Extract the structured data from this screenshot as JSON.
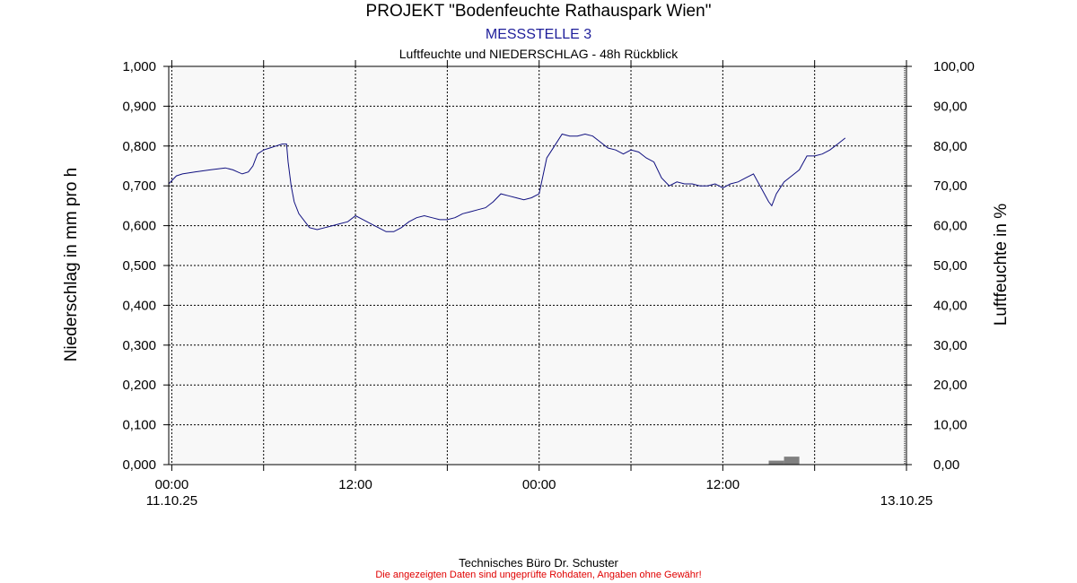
{
  "header": {
    "title": "PROJEKT \"Bodenfeuchte Rathauspark Wien\"",
    "subtitle": "MESSSTELLE 3",
    "subtitle2": "Luftfeuchte und NIEDERSCHLAG - 48h Rückblick"
  },
  "footer": {
    "company": "Technisches Büro Dr. Schuster",
    "disclaimer": "Die angezeigten Daten sind ungeprüfte Rohdaten, Angaben ohne Gewähr!"
  },
  "colors": {
    "subtitle": "#1e1e9a",
    "line": "#101080",
    "bar": "#808080",
    "disclaimer": "#e00000",
    "plot_bg": "#f8f8f8"
  },
  "chart_data": {
    "type": "line",
    "title": "PROJEKT \"Bodenfeuchte Rathauspark Wien\"",
    "subtitle": "MESSSTELLE 3",
    "ylabel": "Niederschlag in mm pro h",
    "y2label": "Luftfeuchte in %",
    "x_range_hours": [
      -0.2,
      48
    ],
    "x_ticks": [
      {
        "h": 0,
        "label": "00:00",
        "sublabel": "11.10.25"
      },
      {
        "h": 6,
        "label": ""
      },
      {
        "h": 12,
        "label": "12:00"
      },
      {
        "h": 18,
        "label": ""
      },
      {
        "h": 24,
        "label": "00:00"
      },
      {
        "h": 30,
        "label": ""
      },
      {
        "h": 36,
        "label": "12:00"
      },
      {
        "h": 42,
        "label": ""
      },
      {
        "h": 48,
        "label": "",
        "sublabel": "13.10.25"
      }
    ],
    "ylim": [
      0,
      1
    ],
    "y_ticks": [
      "0,000",
      "0,100",
      "0,200",
      "0,300",
      "0,400",
      "0,500",
      "0,600",
      "0,700",
      "0,800",
      "0,900",
      "1,000"
    ],
    "y2lim": [
      0,
      100
    ],
    "y2_ticks": [
      "0,00",
      "10,00",
      "20,00",
      "30,00",
      "40,00",
      "50,00",
      "60,00",
      "70,00",
      "80,00",
      "90,00",
      "100,00"
    ],
    "grid": true,
    "series": [
      {
        "name": "Luftfeuchte",
        "axis": "right",
        "x_hours": [
          -0.2,
          0.3,
          0.7,
          1.5,
          2.5,
          3.5,
          4,
          4.3,
          4.6,
          5,
          5.3,
          5.6,
          6,
          6.4,
          6.8,
          7.2,
          7.5,
          7.6,
          7.8,
          8,
          8.3,
          8.7,
          9,
          9.5,
          10,
          10.5,
          11,
          11.5,
          12,
          12.5,
          13,
          13.5,
          14,
          14.5,
          15,
          15.5,
          16,
          16.5,
          17,
          17.5,
          18,
          18.5,
          19,
          19.5,
          20,
          20.5,
          21,
          21.5,
          22,
          22.5,
          23,
          23.5,
          24,
          24.5,
          25,
          25.5,
          26,
          26.5,
          27,
          27.5,
          28,
          28.5,
          29,
          29.5,
          30,
          30.5,
          31,
          31.5,
          32,
          32.5,
          33,
          33.5,
          34,
          34.5,
          35,
          35.5,
          36,
          36.5,
          37,
          37.5,
          38,
          38.5,
          39,
          39.2,
          39.5,
          40,
          40.5,
          41,
          41.5,
          42,
          42.5,
          43,
          43.5,
          44
        ],
        "values": [
          70.5,
          72.5,
          73,
          73.5,
          74,
          74.5,
          74,
          73.5,
          73,
          73.5,
          75,
          78,
          79,
          79.5,
          80,
          80.5,
          80.5,
          76,
          70,
          66,
          63,
          61,
          59.5,
          59,
          59.5,
          60,
          60.5,
          61,
          62.5,
          61.5,
          60.5,
          59.5,
          58.5,
          58.5,
          59.5,
          61,
          62,
          62.5,
          62,
          61.5,
          61.5,
          62,
          63,
          63.5,
          64,
          64.5,
          66,
          68,
          67.5,
          67,
          66.5,
          67,
          68,
          77,
          80,
          83,
          82.5,
          82.5,
          83,
          82.5,
          81,
          79.5,
          79,
          78,
          79,
          78.5,
          77,
          76,
          72,
          70,
          71,
          70.5,
          70.5,
          70,
          70,
          70.5,
          69.5,
          70.5,
          71,
          72,
          73,
          69.5,
          66,
          65,
          68,
          71,
          72.5,
          74,
          77.5,
          77.5,
          78,
          79,
          80.5,
          82
        ]
      },
      {
        "name": "Niederschlag",
        "axis": "left",
        "type": "bar",
        "x_hours": [
          39,
          40
        ],
        "values": [
          0.01,
          0.02
        ]
      }
    ]
  }
}
